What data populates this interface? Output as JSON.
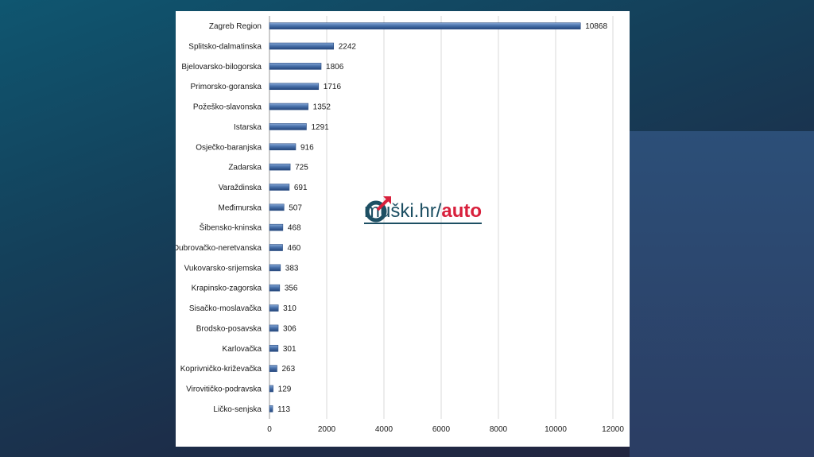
{
  "logo": {
    "text_main": "muški.hr/",
    "text_accent": "auto",
    "colors": {
      "main": "#1d4f63",
      "accent": "#d8203c"
    }
  },
  "chart_data": {
    "type": "bar",
    "orientation": "horizontal",
    "categories": [
      "Zagreb Region",
      "Splitsko-dalmatinska",
      "Bjelovarsko-bilogorska",
      "Primorsko-goranska",
      "Požeško-slavonska",
      "Istarska",
      "Osječko-baranjska",
      "Zadarska",
      "Varaždinska",
      "Međimurska",
      "Šibensko-kninska",
      "Dubrovačko-neretvanska",
      "Vukovarsko-srijemska",
      "Krapinsko-zagorska",
      "Sisačko-moslavačka",
      "Brodsko-posavska",
      "Karlovačka",
      "Koprivničko-križevačka",
      "Virovitičko-podravska",
      "Ličko-senjska"
    ],
    "values": [
      10868,
      2242,
      1806,
      1716,
      1352,
      1291,
      916,
      725,
      691,
      507,
      468,
      460,
      383,
      356,
      310,
      306,
      301,
      263,
      129,
      113
    ],
    "xlim": [
      0,
      12000
    ],
    "xticks": [
      "0",
      "2000",
      "4000",
      "6000",
      "8000",
      "10000",
      "12000"
    ],
    "grid": "vertical",
    "data_labels": true,
    "bar_color": "#4a72ab"
  }
}
